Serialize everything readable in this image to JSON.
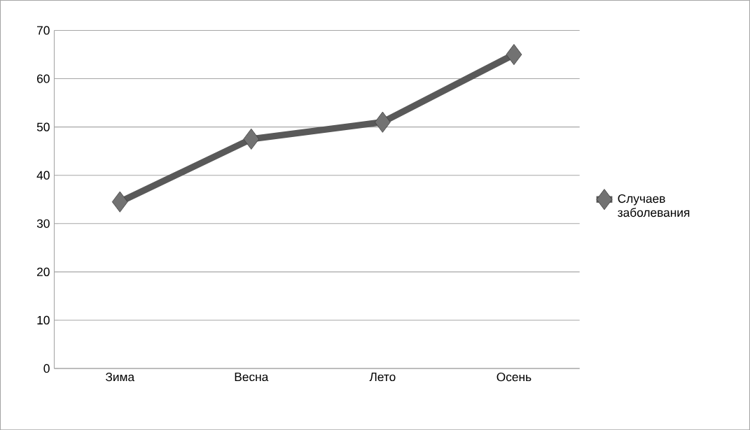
{
  "chart_data": {
    "type": "line",
    "categories": [
      "Зима",
      "Весна",
      "Лето",
      "Осень"
    ],
    "series": [
      {
        "name": "Случаев заболевания",
        "color": "#595959",
        "values": [
          34.5,
          47.5,
          51,
          65
        ]
      }
    ],
    "ylim": [
      0,
      70
    ],
    "yticks": [
      0,
      10,
      20,
      30,
      40,
      50,
      60,
      70
    ],
    "grid": "y",
    "legend": "right",
    "marker": "diamond",
    "line_style": "solid"
  }
}
